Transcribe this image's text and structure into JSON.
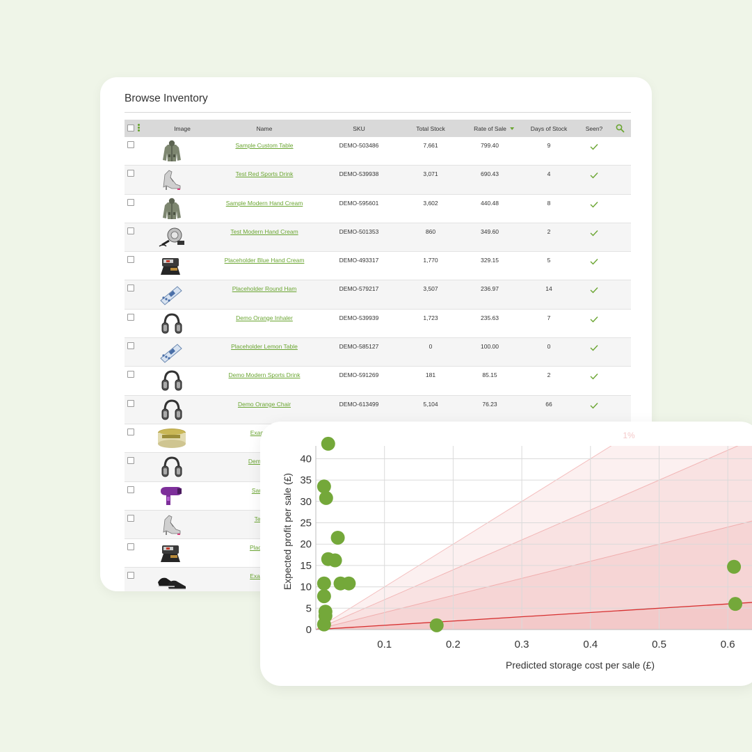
{
  "page": {
    "title": "Browse Inventory"
  },
  "table": {
    "columns": {
      "image": "Image",
      "name": "Name",
      "sku": "SKU",
      "total_stock": "Total Stock",
      "rate_of_sale": "Rate of Sale",
      "days_of_stock": "Days of Stock",
      "seen": "Seen?"
    },
    "rows": [
      {
        "name": "Sample Custom Table",
        "sku": "DEMO-503486",
        "total_stock": "7,661",
        "rate": "799.40",
        "days": "9",
        "seen": true,
        "img": "jacket"
      },
      {
        "name": "Test Red Sports Drink",
        "sku": "DEMO-539938",
        "total_stock": "3,071",
        "rate": "690.43",
        "days": "4",
        "seen": true,
        "img": "heel"
      },
      {
        "name": "Sample Modern Hand Cream",
        "sku": "DEMO-595601",
        "total_stock": "3,602",
        "rate": "440.48",
        "days": "8",
        "seen": true,
        "img": "jacket"
      },
      {
        "name": "Test Modern Hand Cream",
        "sku": "DEMO-501353",
        "total_stock": "860",
        "rate": "349.60",
        "days": "2",
        "seen": true,
        "img": "gadget"
      },
      {
        "name": "Placeholder Blue Hand Cream",
        "sku": "DEMO-493317",
        "total_stock": "1,770",
        "rate": "329.15",
        "days": "5",
        "seen": true,
        "img": "machine"
      },
      {
        "name": "Placeholder Round Ham",
        "sku": "DEMO-579217",
        "total_stock": "3,507",
        "rate": "236.97",
        "days": "14",
        "seen": true,
        "img": "device"
      },
      {
        "name": "Demo Orange Inhaler",
        "sku": "DEMO-539939",
        "total_stock": "1,723",
        "rate": "235.63",
        "days": "7",
        "seen": true,
        "img": "headphones"
      },
      {
        "name": "Placeholder Lemon Table",
        "sku": "DEMO-585127",
        "total_stock": "0",
        "rate": "100.00",
        "days": "0",
        "seen": true,
        "img": "device"
      },
      {
        "name": "Demo Modern Sports Drink",
        "sku": "DEMO-591269",
        "total_stock": "181",
        "rate": "85.15",
        "days": "2",
        "seen": true,
        "img": "headphones"
      },
      {
        "name": "Demo Orange Chair",
        "sku": "DEMO-613499",
        "total_stock": "5,104",
        "rate": "76.23",
        "days": "66",
        "seen": true,
        "img": "headphones"
      },
      {
        "name": "Example F",
        "sku": "",
        "total_stock": "",
        "rate": "",
        "days": "",
        "seen": false,
        "img": "jar"
      },
      {
        "name": "Demo Mode",
        "sku": "",
        "total_stock": "",
        "rate": "",
        "days": "",
        "seen": false,
        "img": "headphones"
      },
      {
        "name": "Sample F",
        "sku": "",
        "total_stock": "",
        "rate": "",
        "days": "",
        "seen": false,
        "img": "dryer"
      },
      {
        "name": "Test Re",
        "sku": "",
        "total_stock": "",
        "rate": "",
        "days": "",
        "seen": false,
        "img": "heel"
      },
      {
        "name": "Placeholde",
        "sku": "",
        "total_stock": "",
        "rate": "",
        "days": "",
        "seen": false,
        "img": "machine"
      },
      {
        "name": "Example C",
        "sku": "",
        "total_stock": "",
        "rate": "",
        "days": "",
        "seen": false,
        "img": "shoes"
      }
    ]
  },
  "colors": {
    "accent": "#6aa531",
    "point": "#74a83a",
    "zone": "#e35656"
  },
  "chart_data": {
    "type": "scatter",
    "xlabel": "Predicted storage cost per sale (£)",
    "ylabel": "Expected profit per sale (£)",
    "xlim": [
      0,
      0.65
    ],
    "ylim": [
      0,
      44
    ],
    "xticks": [
      0.1,
      0.2,
      0.3,
      0.4,
      0.5,
      0.6
    ],
    "yticks": [
      0,
      5,
      10,
      15,
      20,
      25,
      30,
      35,
      40
    ],
    "grid": true,
    "zone_label": "1%",
    "zone_slopes": [
      10,
      40,
      70,
      100
    ],
    "reference_line_slope": 10,
    "points": [
      {
        "x": 0.018,
        "y": 43.5
      },
      {
        "x": 0.012,
        "y": 33.5
      },
      {
        "x": 0.015,
        "y": 30.8
      },
      {
        "x": 0.032,
        "y": 21.5
      },
      {
        "x": 0.018,
        "y": 16.5
      },
      {
        "x": 0.028,
        "y": 16.2
      },
      {
        "x": 0.012,
        "y": 10.8
      },
      {
        "x": 0.036,
        "y": 10.8
      },
      {
        "x": 0.048,
        "y": 10.8
      },
      {
        "x": 0.012,
        "y": 7.8
      },
      {
        "x": 0.014,
        "y": 4.2
      },
      {
        "x": 0.014,
        "y": 3.2
      },
      {
        "x": 0.012,
        "y": 1.2
      },
      {
        "x": 0.176,
        "y": 1.0
      },
      {
        "x": 0.609,
        "y": 14.7
      },
      {
        "x": 0.611,
        "y": 6.0
      }
    ]
  }
}
